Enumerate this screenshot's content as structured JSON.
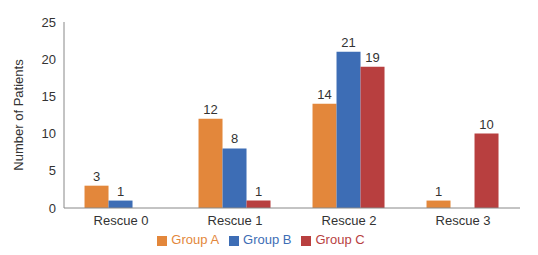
{
  "chart_data": {
    "type": "bar",
    "y_label": "Number of Patients",
    "categories": [
      "Rescue 0",
      "Rescue 1",
      "Rescue 2",
      "Rescue 3"
    ],
    "series": [
      {
        "name": "Group A",
        "color": "#e3873b",
        "values": [
          3,
          12,
          14,
          1
        ]
      },
      {
        "name": "Group B",
        "color": "#3d6db5",
        "values": [
          1,
          8,
          21,
          0
        ]
      },
      {
        "name": "Group C",
        "color": "#b83f3f",
        "values": [
          0,
          1,
          19,
          10
        ]
      }
    ],
    "ylim": [
      0,
      25
    ],
    "yticks": [
      0,
      5,
      10,
      15,
      20,
      25
    ],
    "data_labels": true,
    "legend": "bottom",
    "grid": false
  }
}
